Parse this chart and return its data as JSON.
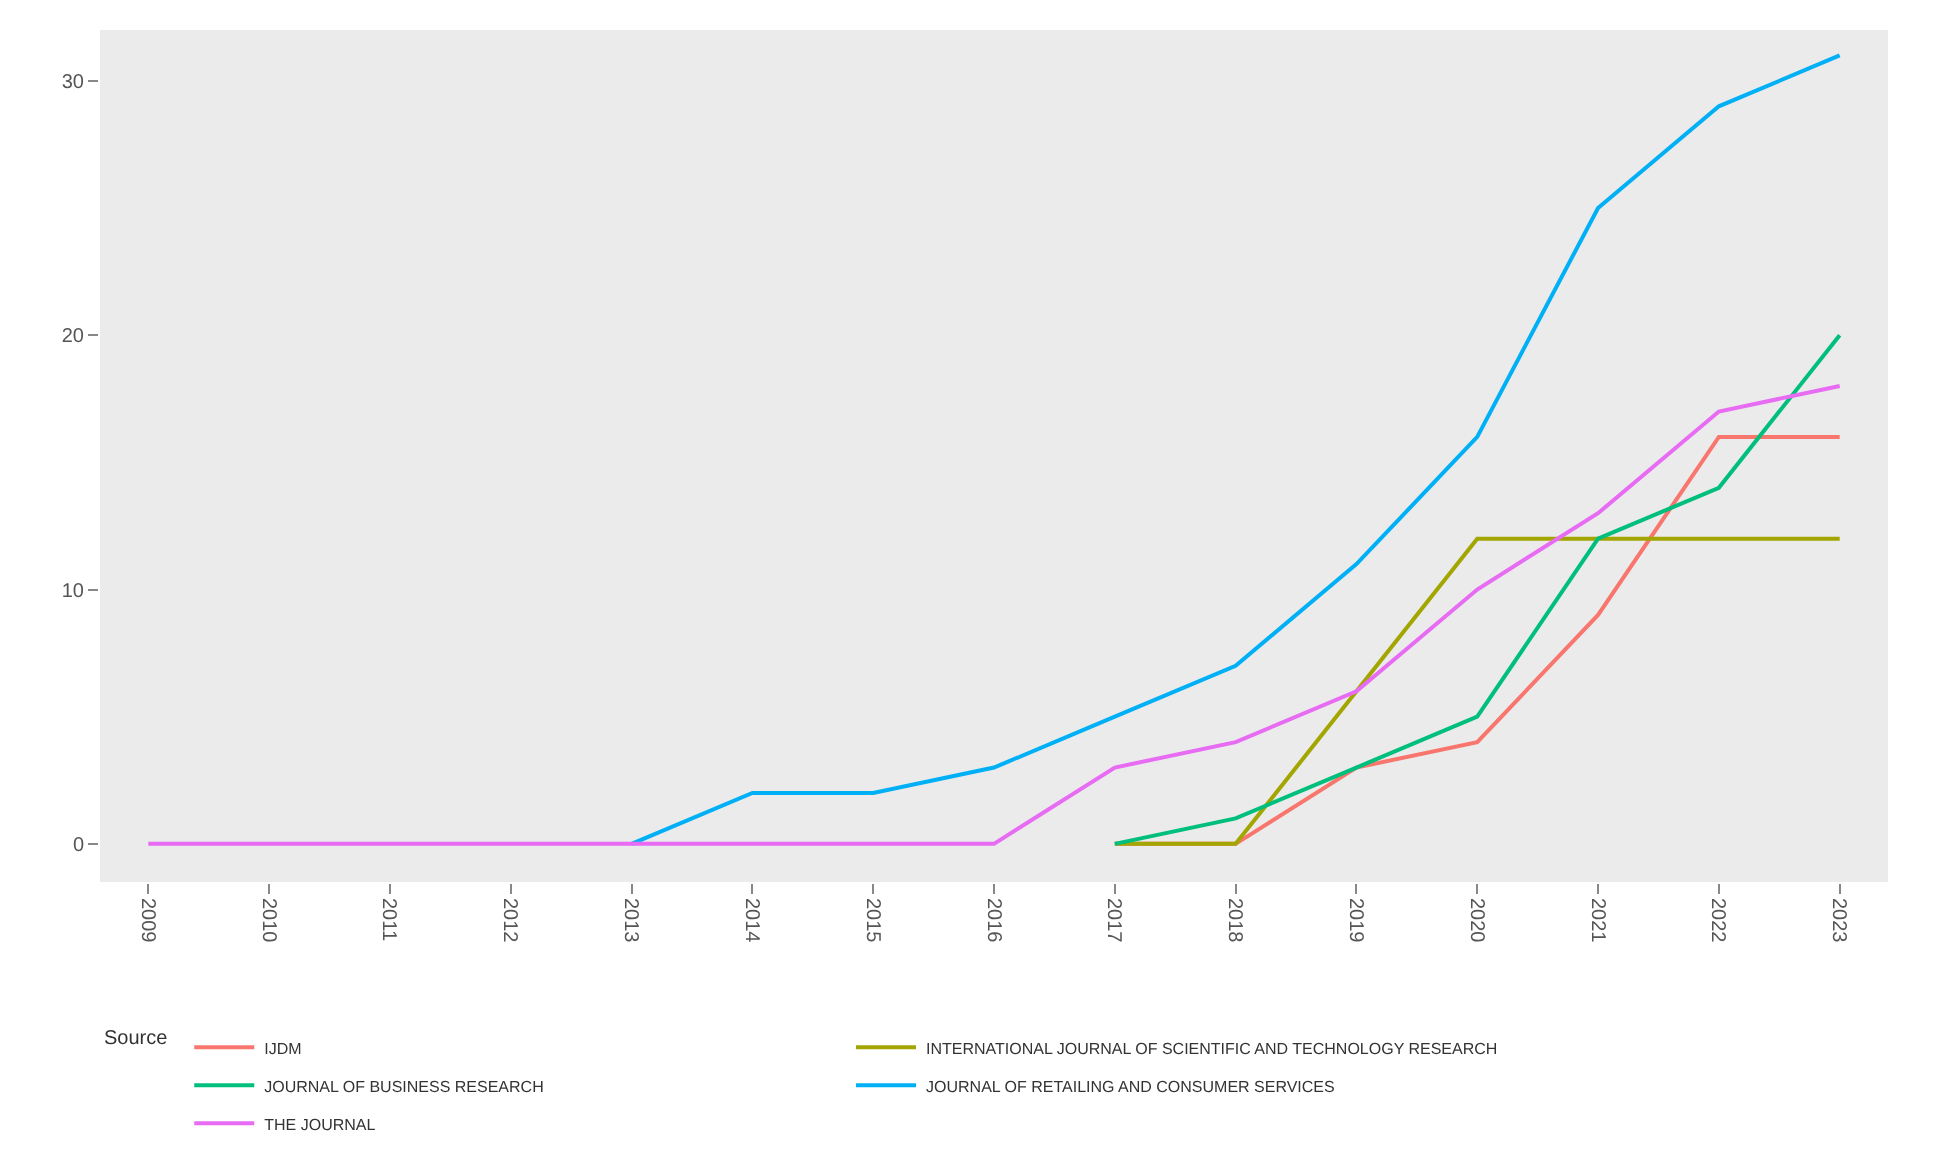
{
  "chart_data": {
    "type": "line",
    "x": [
      2009,
      2010,
      2011,
      2012,
      2013,
      2014,
      2015,
      2016,
      2017,
      2018,
      2019,
      2020,
      2021,
      2022,
      2023
    ],
    "xlim": [
      2008.6,
      2023.4
    ],
    "xticks": [
      2009,
      2010,
      2011,
      2012,
      2013,
      2014,
      2015,
      2016,
      2017,
      2018,
      2019,
      2020,
      2021,
      2022,
      2023
    ],
    "ylim": [
      -1.5,
      32
    ],
    "yticks": [
      0,
      10,
      20,
      30
    ],
    "legend": "bottom",
    "legend_title": "Source",
    "series": [
      {
        "name": "IJDM",
        "color": "#f8766d",
        "values": [
          null,
          null,
          null,
          null,
          null,
          null,
          null,
          null,
          0,
          0,
          3,
          4,
          9,
          16,
          16
        ]
      },
      {
        "name": "INTERNATIONAL JOURNAL OF SCIENTIFIC AND TECHNOLOGY RESEARCH",
        "color": "#a3a500",
        "values": [
          null,
          null,
          null,
          null,
          null,
          null,
          null,
          null,
          0,
          0,
          6,
          12,
          12,
          12,
          12
        ]
      },
      {
        "name": "JOURNAL OF BUSINESS RESEARCH",
        "color": "#00bf7d",
        "values": [
          null,
          null,
          null,
          null,
          null,
          null,
          null,
          null,
          0,
          1,
          3,
          5,
          12,
          14,
          20
        ]
      },
      {
        "name": "JOURNAL OF RETAILING AND CONSUMER SERVICES",
        "color": "#00b0f6",
        "values": [
          null,
          null,
          null,
          null,
          0,
          2,
          2,
          3,
          5,
          7,
          11,
          16,
          25,
          29,
          31
        ]
      },
      {
        "name": "THE JOURNAL",
        "color": "#e76bf3",
        "values": [
          0,
          0,
          0,
          0,
          0,
          0,
          0,
          0,
          3,
          4,
          6,
          10,
          13,
          17,
          18
        ]
      }
    ]
  }
}
